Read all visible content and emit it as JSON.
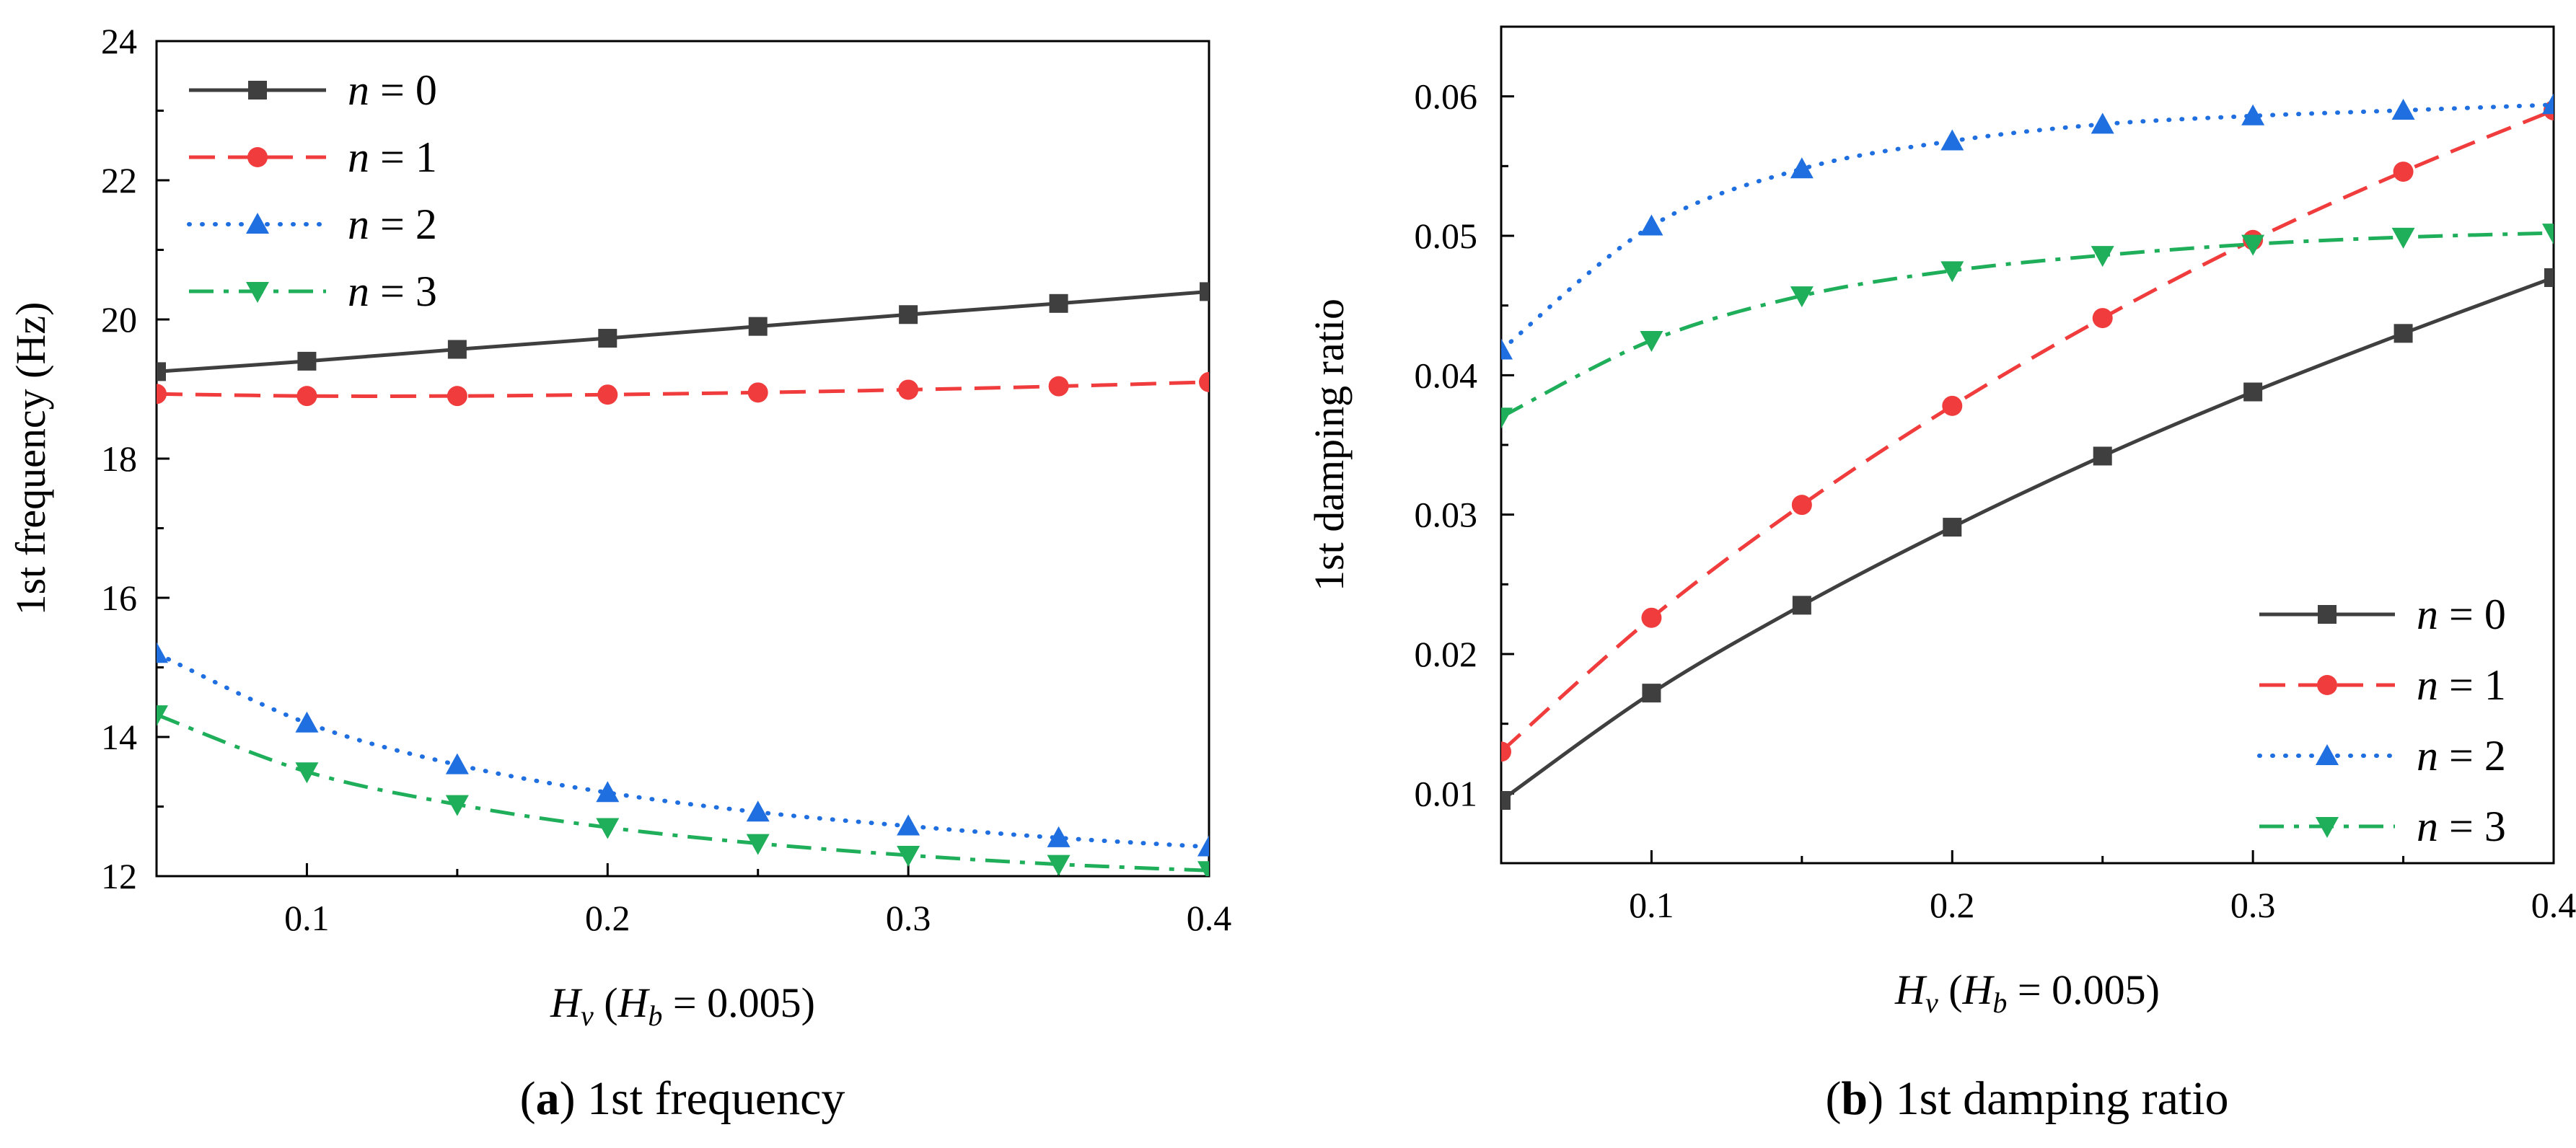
{
  "chart_data": [
    {
      "type": "line",
      "id": "a",
      "caption_label": "a",
      "caption_text": " 1st frequency",
      "xlabel": "H_v (H_b = 0.005)",
      "ylabel": "1st frequency (Hz)",
      "xlim": [
        0.05,
        0.4
      ],
      "ylim": [
        12,
        24
      ],
      "xticks": [
        0.1,
        0.2,
        0.3,
        0.4
      ],
      "xtick_labels": [
        "0.1",
        "0.2",
        "0.3",
        "0.4"
      ],
      "yticks": [
        12,
        14,
        16,
        18,
        20,
        22,
        24
      ],
      "ytick_labels": [
        "12",
        "14",
        "16",
        "18",
        "20",
        "22",
        "24"
      ],
      "legend_position": "top-left",
      "x": [
        0.05,
        0.1,
        0.15,
        0.2,
        0.25,
        0.3,
        0.35,
        0.4
      ],
      "series": [
        {
          "name": "n = 0",
          "label_var": "n",
          "label_rest": " = 0",
          "color": "#3f3f3f",
          "marker": "square",
          "dash": "solid",
          "values": [
            19.25,
            19.4,
            19.57,
            19.73,
            19.9,
            20.07,
            20.23,
            20.4
          ]
        },
        {
          "name": "n = 1",
          "label_var": "n",
          "label_rest": " = 1",
          "color": "#f03c3c",
          "marker": "circle",
          "dash": "dash",
          "values": [
            18.93,
            18.9,
            18.9,
            18.92,
            18.95,
            18.99,
            19.04,
            19.1
          ]
        },
        {
          "name": "n = 2",
          "label_var": "n",
          "label_rest": " = 2",
          "color": "#1f6fe0",
          "marker": "triangle-up",
          "dash": "dot",
          "values": [
            15.2,
            14.2,
            13.6,
            13.2,
            12.92,
            12.72,
            12.55,
            12.42
          ]
        },
        {
          "name": "n = 3",
          "label_var": "n",
          "label_rest": " = 3",
          "color": "#1fae5a",
          "marker": "triangle-down",
          "dash": "dashdot",
          "values": [
            14.32,
            13.5,
            13.03,
            12.7,
            12.47,
            12.3,
            12.17,
            12.08
          ]
        }
      ]
    },
    {
      "type": "line",
      "id": "b",
      "caption_label": "b",
      "caption_text": " 1st damping ratio",
      "xlabel": "H_v (H_b = 0.005)",
      "ylabel": "1st damping ratio",
      "xlim": [
        0.05,
        0.4
      ],
      "ylim": [
        0.005,
        0.065
      ],
      "xticks": [
        0.1,
        0.2,
        0.3,
        0.4
      ],
      "xtick_labels": [
        "0.1",
        "0.2",
        "0.3",
        "0.4"
      ],
      "yticks": [
        0.01,
        0.02,
        0.03,
        0.04,
        0.05,
        0.06
      ],
      "ytick_labels": [
        "0.01",
        "0.02",
        "0.03",
        "0.04",
        "0.05",
        "0.06"
      ],
      "legend_position": "bottom-right",
      "x": [
        0.05,
        0.1,
        0.15,
        0.2,
        0.25,
        0.3,
        0.35,
        0.4
      ],
      "series": [
        {
          "name": "n = 0",
          "label_var": "n",
          "label_rest": " = 0",
          "color": "#3f3f3f",
          "marker": "square",
          "dash": "solid",
          "values": [
            0.0095,
            0.0172,
            0.0235,
            0.0291,
            0.0342,
            0.0388,
            0.043,
            0.047
          ]
        },
        {
          "name": "n = 1",
          "label_var": "n",
          "label_rest": " = 1",
          "color": "#f03c3c",
          "marker": "circle",
          "dash": "dash",
          "values": [
            0.013,
            0.0226,
            0.0307,
            0.0378,
            0.0441,
            0.0497,
            0.0546,
            0.059
          ]
        },
        {
          "name": "n = 2",
          "label_var": "n",
          "label_rest": " = 2",
          "color": "#1f6fe0",
          "marker": "triangle-up",
          "dash": "dot",
          "values": [
            0.0418,
            0.0507,
            0.0548,
            0.0568,
            0.058,
            0.0586,
            0.059,
            0.0594
          ]
        },
        {
          "name": "n = 3",
          "label_var": "n",
          "label_rest": " = 3",
          "color": "#1fae5a",
          "marker": "triangle-down",
          "dash": "dashdot",
          "values": [
            0.037,
            0.0425,
            0.0457,
            0.0475,
            0.0486,
            0.0494,
            0.0499,
            0.0502
          ]
        }
      ]
    }
  ]
}
